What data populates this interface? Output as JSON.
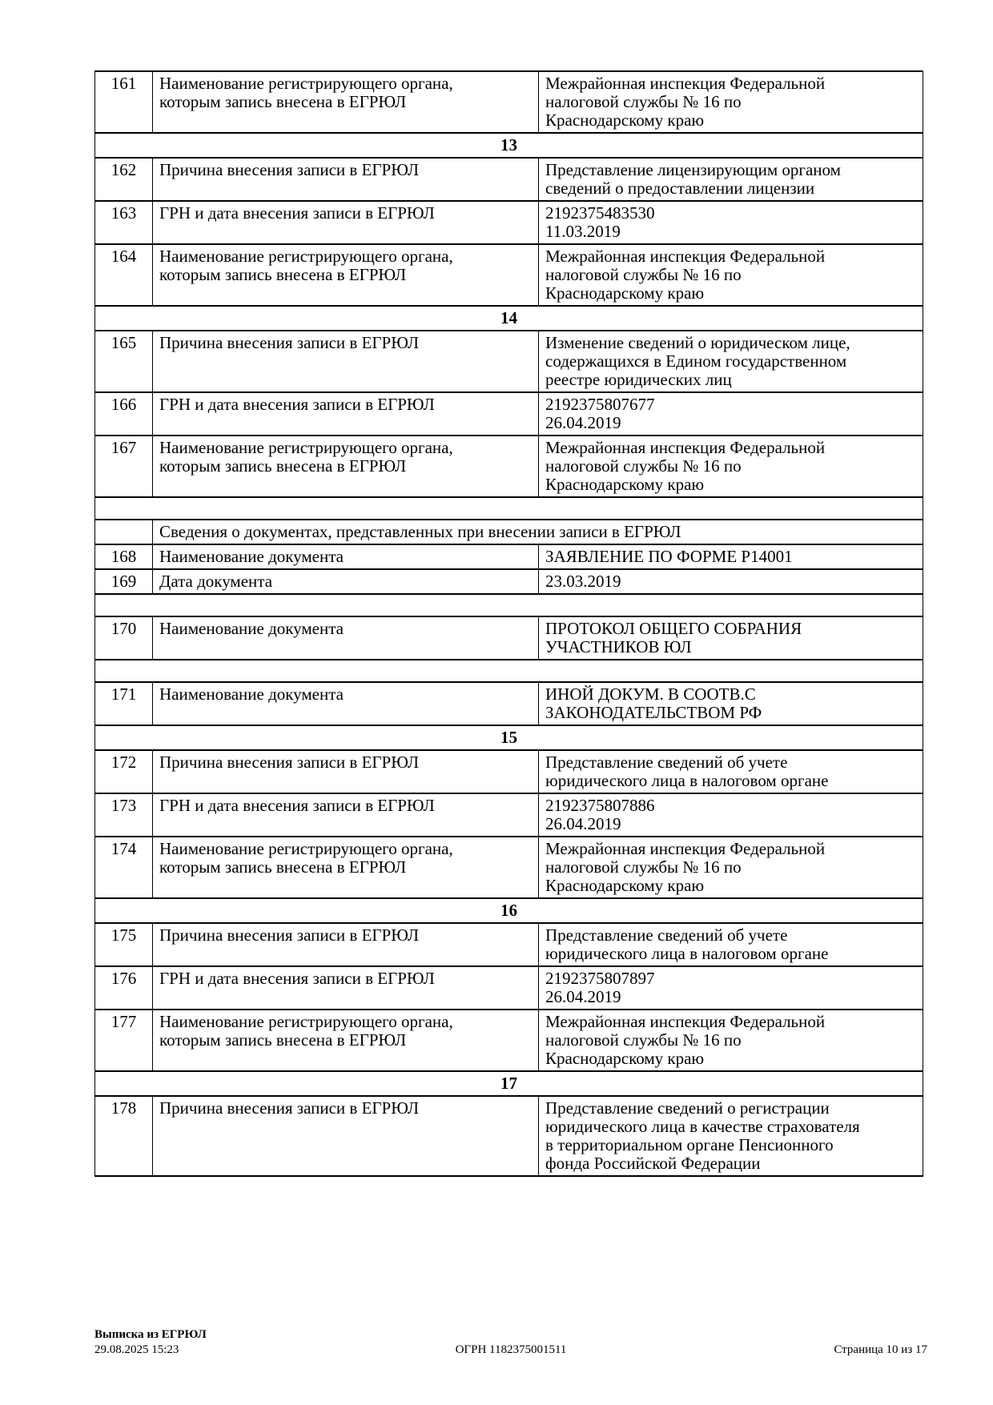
{
  "rows": [
    {
      "type": "record",
      "num": "161",
      "label": "Наименование регистрирующего органа,\nкоторым запись внесена в ЕГРЮЛ",
      "value": "Межрайонная инспекция Федеральной\nналоговой службы № 16 по\nКраснодарскому краю"
    },
    {
      "type": "section",
      "label": "13"
    },
    {
      "type": "record",
      "num": "162",
      "label": "Причина внесения записи в ЕГРЮЛ",
      "value": "Представление лицензирующим органом\nсведений о предоставлении лицензии"
    },
    {
      "type": "record",
      "num": "163",
      "label": "ГРН и дата внесения записи в ЕГРЮЛ",
      "value": "2192375483530\n11.03.2019"
    },
    {
      "type": "record",
      "num": "164",
      "label": "Наименование регистрирующего органа,\nкоторым запись внесена в ЕГРЮЛ",
      "value": "Межрайонная инспекция Федеральной\nналоговой службы № 16 по\nКраснодарскому краю"
    },
    {
      "type": "section",
      "label": "14"
    },
    {
      "type": "record",
      "num": "165",
      "label": "Причина внесения записи в ЕГРЮЛ",
      "value": "Изменение сведений о юридическом лице,\nсодержащихся в Едином государственном\nреестре юридических лиц"
    },
    {
      "type": "record",
      "num": "166",
      "label": "ГРН и дата внесения записи в ЕГРЮЛ",
      "value": "2192375807677\n26.04.2019"
    },
    {
      "type": "record",
      "num": "167",
      "label": "Наименование регистрирующего органа,\nкоторым запись внесена в ЕГРЮЛ",
      "value": "Межрайонная инспекция Федеральной\nналоговой службы № 16 по\nКраснодарскому краю"
    },
    {
      "type": "gap"
    },
    {
      "type": "subheader",
      "label": "Сведения о документах, представленных при внесении записи в ЕГРЮЛ"
    },
    {
      "type": "record",
      "num": "168",
      "label": "Наименование документа",
      "value": "ЗАЯВЛЕНИЕ ПО ФОРМЕ Р14001"
    },
    {
      "type": "record",
      "num": "169",
      "label": "Дата документа",
      "value": "23.03.2019"
    },
    {
      "type": "gap"
    },
    {
      "type": "record",
      "num": "170",
      "label": "Наименование документа",
      "value": "ПРОТОКОЛ ОБЩЕГО СОБРАНИЯ\nУЧАСТНИКОВ ЮЛ"
    },
    {
      "type": "gap"
    },
    {
      "type": "record",
      "num": "171",
      "label": "Наименование документа",
      "value": "ИНОЙ ДОКУМ. В СООТВ.С\nЗАКОНОДАТЕЛЬСТВОМ РФ"
    },
    {
      "type": "section",
      "label": "15"
    },
    {
      "type": "record",
      "num": "172",
      "label": "Причина внесения записи в ЕГРЮЛ",
      "value": "Представление сведений об учете\nюридического лица в налоговом органе"
    },
    {
      "type": "record",
      "num": "173",
      "label": "ГРН и дата внесения записи в ЕГРЮЛ",
      "value": "2192375807886\n26.04.2019"
    },
    {
      "type": "record",
      "num": "174",
      "label": "Наименование регистрирующего органа,\nкоторым запись внесена в ЕГРЮЛ",
      "value": "Межрайонная инспекция Федеральной\nналоговой службы № 16 по\nКраснодарскому краю"
    },
    {
      "type": "section",
      "label": "16"
    },
    {
      "type": "record",
      "num": "175",
      "label": "Причина внесения записи в ЕГРЮЛ",
      "value": "Представление сведений об учете\nюридического лица в налоговом органе"
    },
    {
      "type": "record",
      "num": "176",
      "label": "ГРН и дата внесения записи в ЕГРЮЛ",
      "value": "2192375807897\n26.04.2019"
    },
    {
      "type": "record",
      "num": "177",
      "label": "Наименование регистрирующего органа,\nкоторым запись внесена в ЕГРЮЛ",
      "value": "Межрайонная инспекция Федеральной\nналоговой службы № 16 по\nКраснодарскому краю"
    },
    {
      "type": "section",
      "label": "17"
    },
    {
      "type": "record",
      "num": "178",
      "label": "Причина внесения записи в ЕГРЮЛ",
      "value": "Представление сведений о регистрации\nюридического лица в качестве страхователя\nв территориальном органе Пенсионного\nфонда Российской Федерации"
    }
  ],
  "footer": {
    "doc_type": "Выписка из ЕГРЮЛ",
    "generated": "29.08.2025 15:23",
    "ogrn": "ОГРН 1182375001511",
    "page": "Страница 10 из 17"
  }
}
